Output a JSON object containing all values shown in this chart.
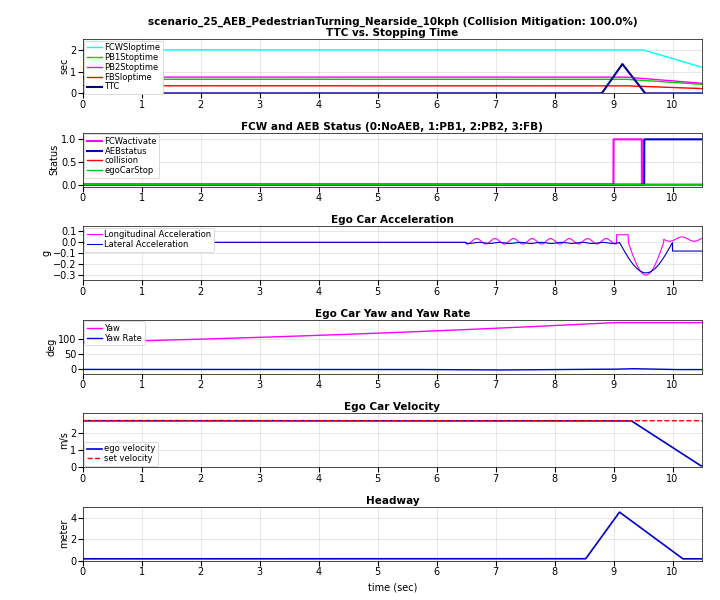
{
  "title_line1": "scenario_25_AEB_PedestrianTurning_Nearside_10kph (Collision Mitigation: 100.0%)",
  "title_line2": "TTC vs. Stopping Time",
  "subplot_titles": [
    "TTC vs. Stopping Time",
    "FCW and AEB Status (0:NoAEB, 1:PB1, 2:PB2, 3:FB)",
    "Ego Car Acceleration",
    "Ego Car Yaw and Yaw Rate",
    "Ego Car Velocity",
    "Headway"
  ],
  "colors": {
    "FCWSloptime": "#00FFFF",
    "PB1Stoptime": "#00CC00",
    "PB2Stoptime": "#FF00FF",
    "FBSloptime": "#FF0000",
    "TTC": "#00008B",
    "FCWactivate": "#FF00FF",
    "AEBstatus": "#0000CD",
    "collision": "#FF0000",
    "egoCarStop": "#00CC00",
    "LongAccel": "#FF00FF",
    "LatAccel": "#0000CD",
    "Yaw": "#FF00FF",
    "YawRate": "#0000CD",
    "egoVel": "#0000CD",
    "setVel": "#FF0000",
    "headway": "#0000CD"
  },
  "ylabels": [
    "sec",
    "Status",
    "g",
    "deg",
    "m/s",
    "meter"
  ],
  "xlabel": "time (sec)",
  "legend1": [
    "FCWSloptime",
    "PB1Stoptime",
    "PB2Stoptime",
    "FBSloptime",
    "TTC"
  ],
  "legend2": [
    "FCWactivate",
    "AEBstatus",
    "collision",
    "egoCarStop"
  ],
  "legend3": [
    "Longitudinal Acceleration",
    "Lateral Acceleration"
  ],
  "legend4": [
    "Yaw",
    "Yaw Rate"
  ],
  "legend5": [
    "ego velocity",
    "set velocity"
  ]
}
